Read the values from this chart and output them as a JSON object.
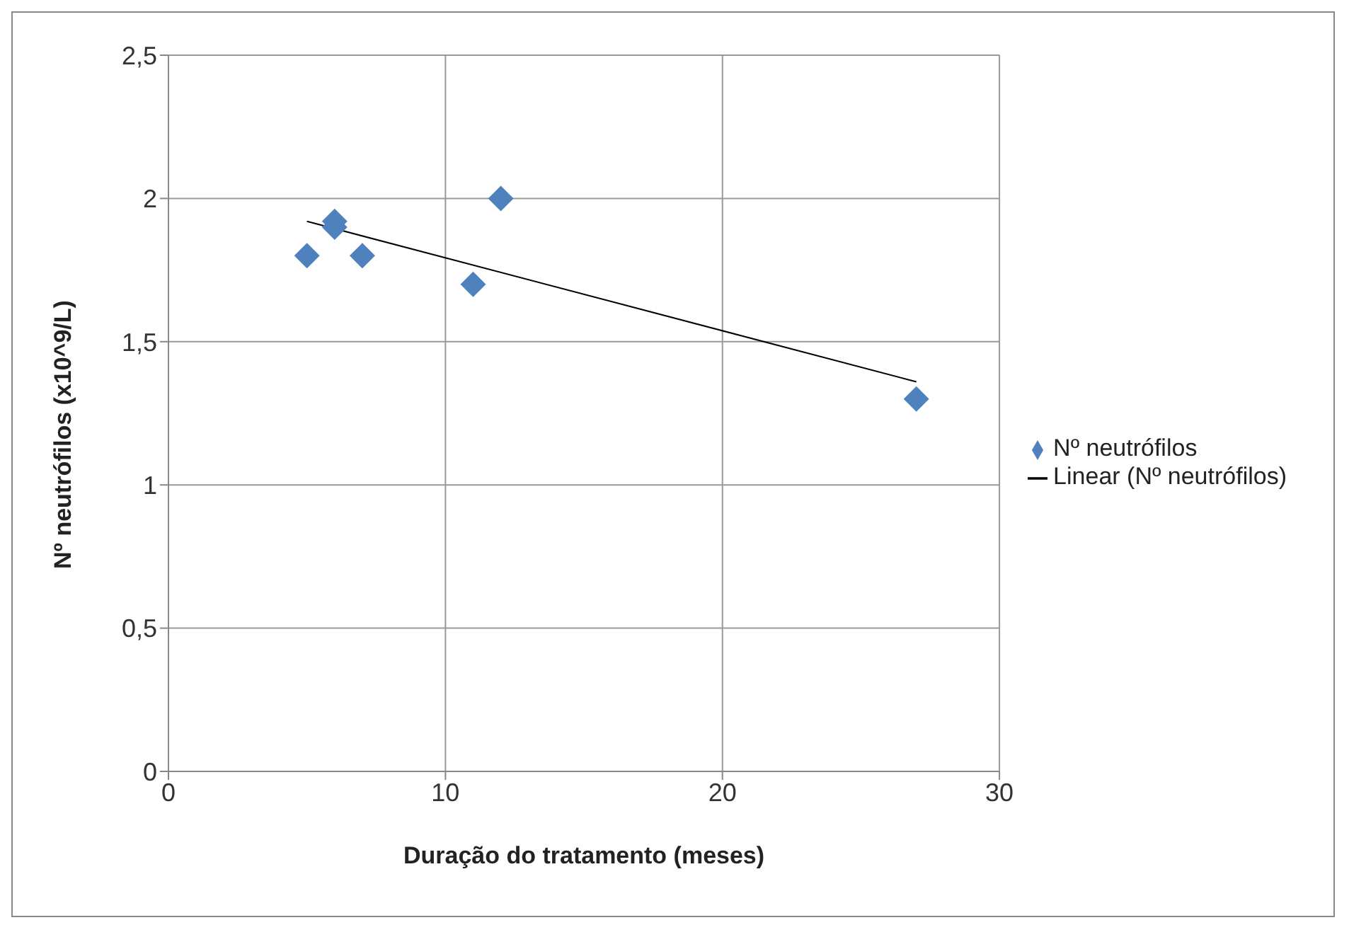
{
  "chart_data": {
    "type": "scatter",
    "xlabel": "Duração do tratamento (meses)",
    "ylabel": "Nº neutrófilos (x10^9/L)",
    "xlim": [
      0,
      30
    ],
    "xticks": [
      0,
      10,
      20,
      30
    ],
    "ylim": [
      0,
      2.5
    ],
    "yticks": [
      0,
      {
        "value": 0.5,
        "label": "0,5"
      },
      1,
      {
        "value": 1.5,
        "label": "1,5"
      },
      2,
      {
        "value": 2.5,
        "label": "2,5"
      }
    ],
    "grid": true,
    "legend": "right",
    "marker": "diamond",
    "series": [
      {
        "name": "Nº neutrófilos",
        "type": "scatter",
        "color": "#4f81bd",
        "x": [
          5,
          6,
          6,
          7,
          11,
          12,
          27
        ],
        "values": [
          1.8,
          1.92,
          1.9,
          1.8,
          1.7,
          2.0,
          1.3
        ]
      },
      {
        "name": "Linear (Nº neutrófilos)",
        "type": "line",
        "color": "#000000",
        "x": [
          5,
          27
        ],
        "values": [
          1.92,
          1.36
        ],
        "marker": "none",
        "line_style": "solid"
      }
    ]
  }
}
